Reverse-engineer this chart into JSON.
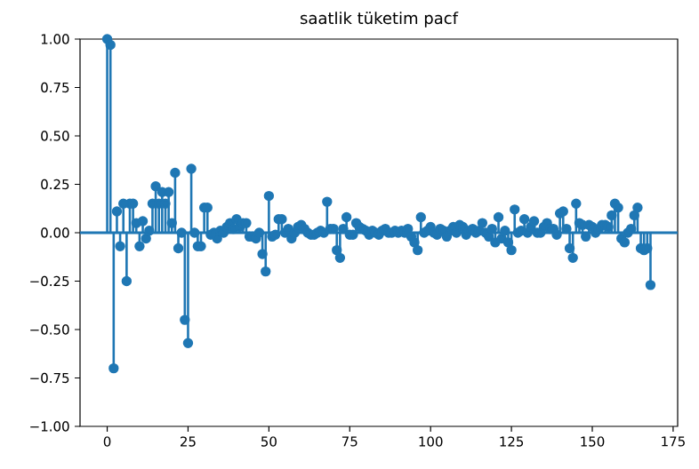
{
  "chart_data": {
    "type": "lollipop",
    "title": "saatlik tüketim pacf",
    "x": [
      0,
      1,
      2,
      3,
      4,
      5,
      6,
      7,
      8,
      9,
      10,
      11,
      12,
      13,
      14,
      15,
      16,
      17,
      18,
      19,
      20,
      21,
      22,
      23,
      24,
      25,
      26,
      27,
      28,
      29,
      30,
      31,
      32,
      33,
      34,
      35,
      36,
      37,
      38,
      39,
      40,
      41,
      42,
      43,
      44,
      45,
      46,
      47,
      48,
      49,
      50,
      51,
      52,
      53,
      54,
      55,
      56,
      57,
      58,
      59,
      60,
      61,
      62,
      63,
      64,
      65,
      66,
      67,
      68,
      69,
      70,
      71,
      72,
      73,
      74,
      75,
      76,
      77,
      78,
      79,
      80,
      81,
      82,
      83,
      84,
      85,
      86,
      87,
      88,
      89,
      90,
      91,
      92,
      93,
      94,
      95,
      96,
      97,
      98,
      99,
      100,
      101,
      102,
      103,
      104,
      105,
      106,
      107,
      108,
      109,
      110,
      111,
      112,
      113,
      114,
      115,
      116,
      117,
      118,
      119,
      120,
      121,
      122,
      123,
      124,
      125,
      126,
      127,
      128,
      129,
      130,
      131,
      132,
      133,
      134,
      135,
      136,
      137,
      138,
      139,
      140,
      141,
      142,
      143,
      144,
      145,
      146,
      147,
      148,
      149,
      150,
      151,
      152,
      153,
      154,
      155,
      156,
      157,
      158,
      159,
      160,
      161,
      162,
      163,
      164,
      165,
      166,
      167,
      168
    ],
    "values": [
      1.0,
      0.97,
      -0.7,
      0.11,
      -0.07,
      0.15,
      -0.25,
      0.15,
      0.15,
      0.05,
      -0.07,
      0.06,
      -0.03,
      0.01,
      0.15,
      0.24,
      0.15,
      0.21,
      0.15,
      0.21,
      0.05,
      0.31,
      -0.08,
      0.0,
      -0.45,
      -0.57,
      0.33,
      0.0,
      -0.07,
      -0.07,
      0.13,
      0.13,
      -0.01,
      0.0,
      -0.03,
      0.01,
      0.0,
      0.03,
      0.05,
      0.02,
      0.07,
      0.03,
      0.05,
      0.05,
      -0.02,
      -0.02,
      -0.03,
      0.0,
      -0.11,
      -0.2,
      0.19,
      -0.02,
      -0.01,
      0.07,
      0.07,
      0.0,
      0.02,
      -0.03,
      0.0,
      0.03,
      0.04,
      0.02,
      0.0,
      -0.01,
      -0.01,
      0.0,
      0.01,
      0.0,
      0.16,
      0.02,
      0.02,
      -0.09,
      -0.13,
      0.02,
      0.08,
      -0.01,
      -0.01,
      0.05,
      0.03,
      0.02,
      0.01,
      -0.01,
      0.01,
      0.0,
      -0.01,
      0.01,
      0.02,
      0.0,
      0.0,
      0.01,
      0.0,
      0.01,
      0.0,
      0.02,
      -0.02,
      -0.05,
      -0.09,
      0.08,
      0.0,
      0.01,
      0.03,
      0.0,
      -0.01,
      0.02,
      0.01,
      -0.02,
      0.01,
      0.03,
      0.0,
      0.04,
      0.03,
      -0.01,
      0.01,
      0.02,
      0.0,
      0.01,
      0.05,
      0.0,
      -0.02,
      0.02,
      -0.05,
      0.08,
      -0.03,
      0.01,
      -0.05,
      -0.09,
      0.12,
      0.0,
      0.01,
      0.07,
      0.0,
      0.03,
      0.06,
      0.0,
      0.0,
      0.03,
      0.05,
      0.02,
      0.02,
      -0.01,
      0.1,
      0.11,
      0.02,
      -0.08,
      -0.13,
      0.15,
      0.05,
      0.04,
      -0.02,
      0.04,
      0.03,
      0.0,
      0.02,
      0.04,
      0.04,
      0.03,
      0.09,
      0.15,
      0.13,
      -0.03,
      -0.05,
      0.0,
      0.02,
      0.09,
      0.13,
      -0.08,
      -0.09,
      -0.08,
      -0.27
    ],
    "color": "#1f77b4",
    "marker": "circle",
    "xlim": [
      -8.4,
      176.4
    ],
    "xticks": [
      0,
      25,
      50,
      75,
      100,
      125,
      150,
      175
    ],
    "ylim": [
      -1.0,
      1.0
    ],
    "yticks": [
      {
        "value": -1.0,
        "label": "−1.00"
      },
      {
        "value": -0.75,
        "label": "−0.75"
      },
      {
        "value": -0.5,
        "label": "−0.50"
      },
      {
        "value": -0.25,
        "label": "−0.25"
      },
      {
        "value": 0.0,
        "label": "0.00"
      },
      {
        "value": 0.25,
        "label": "0.25"
      },
      {
        "value": 0.5,
        "label": "0.50"
      },
      {
        "value": 0.75,
        "label": "0.75"
      },
      {
        "value": 1.0,
        "label": "1.00"
      }
    ],
    "ref_lines": [
      {
        "axis": "y",
        "value": 0,
        "color": "#1f77b4"
      }
    ]
  }
}
